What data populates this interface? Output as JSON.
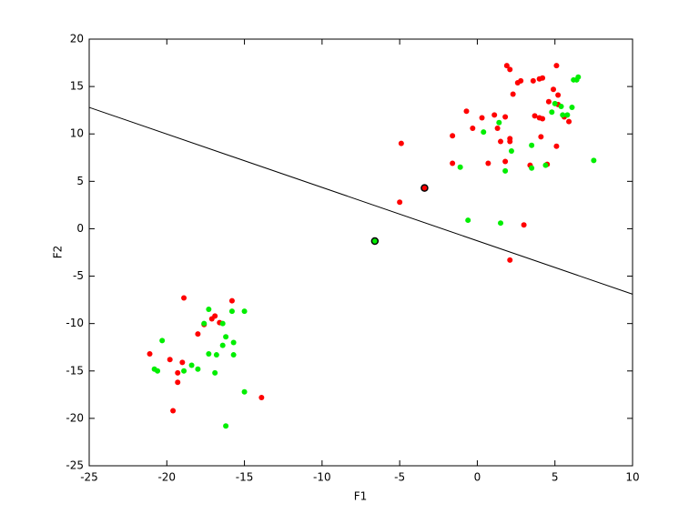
{
  "chart_data": {
    "type": "scatter",
    "xlabel": "F1",
    "ylabel": "F2",
    "xlim": [
      -25,
      10
    ],
    "ylim": [
      -25,
      20
    ],
    "xticks": [
      -25,
      -20,
      -15,
      -10,
      -5,
      0,
      5,
      10
    ],
    "yticks": [
      -25,
      -20,
      -15,
      -10,
      -5,
      0,
      5,
      10,
      15,
      20
    ],
    "grid": false,
    "series": [
      {
        "color": "#ff0000",
        "x": [
          -0.7,
          0.3,
          1.1,
          1.8,
          -1.6,
          -0.3,
          1.3,
          2.1,
          1.5,
          -1.6,
          0.7,
          1.8,
          1.9,
          2.1,
          2.8,
          2.6,
          2.3,
          2.1,
          3.4,
          3.7,
          3.6,
          4.0,
          4.2,
          4.0,
          4.2,
          4.1,
          4.6,
          4.9,
          5.2,
          5.1,
          5.2,
          5.1,
          5.6,
          5.9,
          4.5,
          3.0,
          2.1,
          -4.9,
          -5.0,
          -18.9,
          -15.8,
          -16.9,
          -17.1,
          -16.6,
          -18.0,
          -17.6,
          -19.8,
          -21.1,
          -19.0,
          -19.3,
          -19.3,
          -19.6,
          -13.9
        ],
        "values": [
          12.4,
          11.7,
          12.0,
          11.8,
          9.8,
          10.6,
          10.6,
          9.2,
          9.2,
          6.9,
          6.9,
          7.1,
          17.2,
          16.8,
          15.6,
          15.4,
          14.2,
          9.5,
          6.7,
          11.9,
          15.6,
          15.8,
          15.9,
          11.7,
          11.6,
          9.7,
          13.4,
          14.7,
          14.1,
          17.2,
          13.1,
          8.7,
          11.8,
          11.3,
          6.8,
          0.4,
          -3.3,
          9.0,
          2.8,
          -7.3,
          -7.6,
          -9.2,
          -9.5,
          -9.9,
          -11.1,
          -10.1,
          -13.8,
          -13.2,
          -14.1,
          -15.2,
          -16.2,
          -19.2,
          -17.8
        ]
      },
      {
        "color": "#00ee00",
        "x": [
          1.4,
          0.4,
          2.2,
          1.8,
          -1.1,
          -0.6,
          1.5,
          3.5,
          3.5,
          4.4,
          5.0,
          4.8,
          5.5,
          5.4,
          5.8,
          6.1,
          6.2,
          6.5,
          6.4,
          7.5,
          -17.3,
          -15.8,
          -15.0,
          -17.6,
          -16.4,
          -16.2,
          -16.4,
          -15.7,
          -20.3,
          -18.4,
          -18.0,
          -18.9,
          -20.8,
          -20.6,
          -17.3,
          -16.8,
          -15.7,
          -16.9,
          -15.0,
          -16.2
        ],
        "values": [
          11.2,
          10.2,
          8.2,
          6.1,
          6.5,
          0.9,
          0.6,
          6.4,
          8.8,
          6.7,
          13.2,
          12.3,
          12.0,
          12.9,
          12.0,
          12.8,
          15.7,
          16.0,
          15.7,
          7.2,
          -8.5,
          -8.7,
          -8.7,
          -10.0,
          -10.0,
          -11.4,
          -12.3,
          -12.0,
          -11.8,
          -14.4,
          -14.8,
          -15.0,
          -14.8,
          -15.0,
          -13.2,
          -13.3,
          -13.3,
          -15.2,
          -17.2,
          -20.8
        ]
      },
      {
        "color": "#ff0000",
        "edge": "#000000",
        "x": [
          -3.4
        ],
        "values": [
          4.3
        ]
      },
      {
        "color": "#00ee00",
        "edge": "#000000",
        "x": [
          -6.6
        ],
        "values": [
          -1.3
        ]
      }
    ],
    "line": {
      "color": "#000000",
      "x": [
        -25,
        10
      ],
      "values": [
        12.8,
        -6.9
      ]
    }
  }
}
